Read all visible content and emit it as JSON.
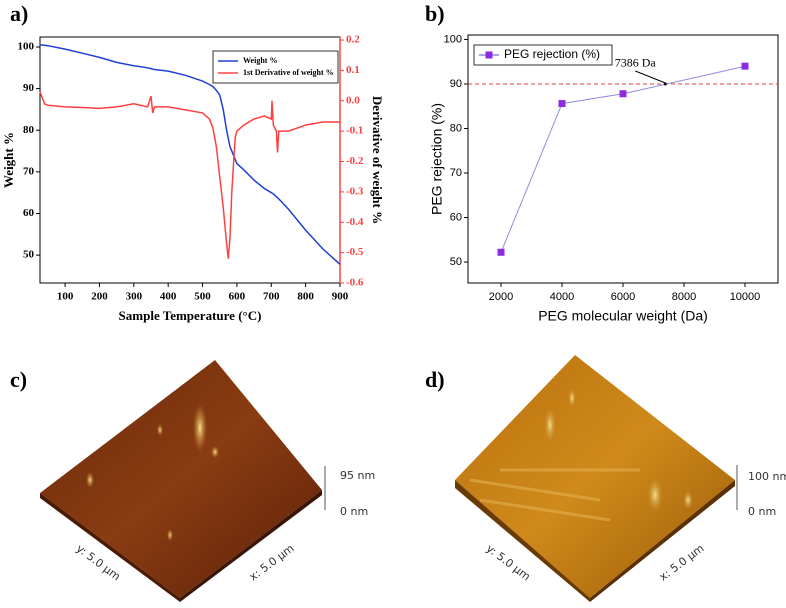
{
  "chart_data": [
    {
      "type": "line",
      "panel_label": "a)",
      "x_label": "Sample Temperature (°C)",
      "y_label": "Weight %",
      "y2_label": "Derivative of weight %",
      "xlim": [
        27,
        900
      ],
      "xticks": [
        100,
        200,
        300,
        400,
        500,
        600,
        700,
        800,
        900
      ],
      "ylim": [
        43.3,
        102.4
      ],
      "yticks": [
        50,
        60,
        70,
        80,
        90,
        100
      ],
      "y2lim": [
        -0.6,
        0.21
      ],
      "y2ticks": [
        0.2,
        0.1,
        {
          "value": 0,
          "label": "0.0"
        },
        -0.1,
        -0.2,
        -0.3,
        -0.4,
        -0.5,
        -0.6
      ],
      "legend": "top right",
      "x": [
        27,
        40,
        50,
        100,
        150,
        200,
        250,
        300,
        340,
        350,
        355,
        360,
        400,
        450,
        500,
        520,
        530,
        540,
        550,
        560,
        570,
        575,
        580,
        585,
        595,
        600,
        620,
        650,
        680,
        700,
        702,
        706,
        715,
        718,
        722,
        750,
        800,
        850,
        900
      ],
      "series": [
        {
          "name": "Weight %",
          "color": "#1f3fd6",
          "values": [
            100.5,
            100.4,
            100.3,
            99.5,
            98.5,
            97.5,
            96.3,
            95.5,
            95.0,
            94.8,
            94.7,
            94.6,
            94.2,
            93.2,
            91.8,
            91.0,
            90.5,
            89.6,
            88.5,
            85.0,
            80.0,
            78.0,
            76.0,
            75.0,
            73.0,
            72.0,
            70.5,
            68.0,
            66.0,
            65.0,
            64.9,
            64.7,
            64.0,
            63.8,
            63.5,
            61.0,
            56.0,
            51.5,
            47.8
          ]
        },
        {
          "name": "1st Derivative of weight %",
          "color": "#ff4040",
          "axis": "y2",
          "values": [
            0.03,
            -0.01,
            -0.015,
            -0.02,
            -0.022,
            -0.025,
            -0.02,
            -0.01,
            -0.02,
            0.015,
            -0.04,
            -0.02,
            -0.02,
            -0.03,
            -0.04,
            -0.06,
            -0.09,
            -0.15,
            -0.25,
            -0.35,
            -0.47,
            -0.52,
            -0.45,
            -0.3,
            -0.12,
            -0.1,
            -0.08,
            -0.06,
            -0.05,
            -0.06,
            0.0,
            -0.08,
            -0.1,
            -0.17,
            -0.1,
            -0.1,
            -0.08,
            -0.07,
            -0.07
          ]
        }
      ]
    },
    {
      "type": "line",
      "panel_label": "b)",
      "markers": true,
      "line_color": "#8c8ce0",
      "x_label": "PEG molecular weight (Da)",
      "y_label": "PEG rejection (%)",
      "xlim": [
        918,
        11082
      ],
      "xticks": [
        2000,
        4000,
        6000,
        8000,
        10000
      ],
      "ylim": [
        45.3,
        101
      ],
      "yticks": [
        50,
        60,
        70,
        80,
        90,
        100
      ],
      "legend": "top left",
      "x": [
        2000,
        4000,
        6000,
        10000
      ],
      "series": [
        {
          "name": "PEG rejection (%)",
          "color": "#8a2be2",
          "values": [
            52.2,
            85.6,
            87.8,
            94.0
          ]
        }
      ],
      "reference_lines": [
        {
          "y": 90,
          "color": "#e04040",
          "dashed": true
        }
      ],
      "annotations": [
        {
          "text": "7386 Da",
          "x": 7386,
          "y": 90
        }
      ]
    }
  ],
  "afm_images": [
    {
      "label": "c)",
      "z_top": "95 nm",
      "z_bottom": "0 nm",
      "y_axis": "y: 5.0 µm",
      "x_axis": "x: 5.0 µm"
    },
    {
      "label": "d)",
      "z_top": "100 nm",
      "z_bottom": "0 nm",
      "y_axis": "y: 5.0 µm",
      "x_axis": "x: 5.0 µm"
    }
  ]
}
